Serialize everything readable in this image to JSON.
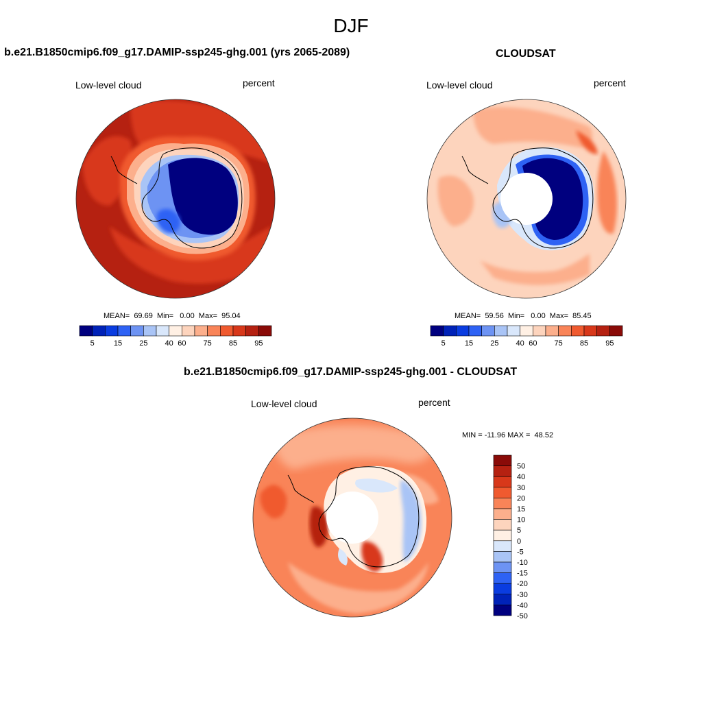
{
  "figure": {
    "title": "DJF",
    "colors": {
      "abs_palette": [
        "#00007f",
        "#0022b8",
        "#0a3ce0",
        "#2e62f4",
        "#6d93f3",
        "#a9c4f6",
        "#d9e7fb",
        "#fff0e4",
        "#fdd4bd",
        "#fcaf8c",
        "#f98458",
        "#f05a2f",
        "#d8381a",
        "#b52111",
        "#8a0b08"
      ],
      "diff_palette": [
        "#00007f",
        "#0022b8",
        "#0a3ce0",
        "#2e62f4",
        "#6d93f3",
        "#a9c4f6",
        "#d9e7fb",
        "#fff0e4",
        "#fdd4bd",
        "#fcaf8c",
        "#f98458",
        "#f05a2f",
        "#d8381a",
        "#b52111",
        "#8a0b08"
      ]
    }
  },
  "panels": [
    {
      "title": "b.e21.B1850cmip6.f09_g17.DAMIP-ssp245-ghg.001 (yrs 2065-2089)",
      "left_label": "Low-level cloud",
      "right_label": "percent",
      "stats": "MEAN=  69.69  Min=   0.00  Max=  95.04",
      "colorbar_ticks": [
        "5",
        "15",
        "25",
        "40",
        "60",
        "75",
        "85",
        "95"
      ]
    },
    {
      "title": "CLOUDSAT",
      "left_label": "Low-level cloud",
      "right_label": "percent",
      "stats": "MEAN=  59.56  Min=   0.00  Max=  85.45",
      "colorbar_ticks": [
        "5",
        "15",
        "25",
        "40",
        "60",
        "75",
        "85",
        "95"
      ]
    },
    {
      "title": "b.e21.B1850cmip6.f09_g17.DAMIP-ssp245-ghg.001 - CLOUDSAT",
      "left_label": "Low-level cloud",
      "right_label": "percent",
      "stats": "MIN = -11.96 MAX =  48.52",
      "colorbar_ticks": [
        "50",
        "40",
        "30",
        "20",
        "15",
        "10",
        "5",
        "0",
        "-5",
        "-10",
        "-15",
        "-20",
        "-30",
        "-40",
        "-50"
      ]
    }
  ]
}
